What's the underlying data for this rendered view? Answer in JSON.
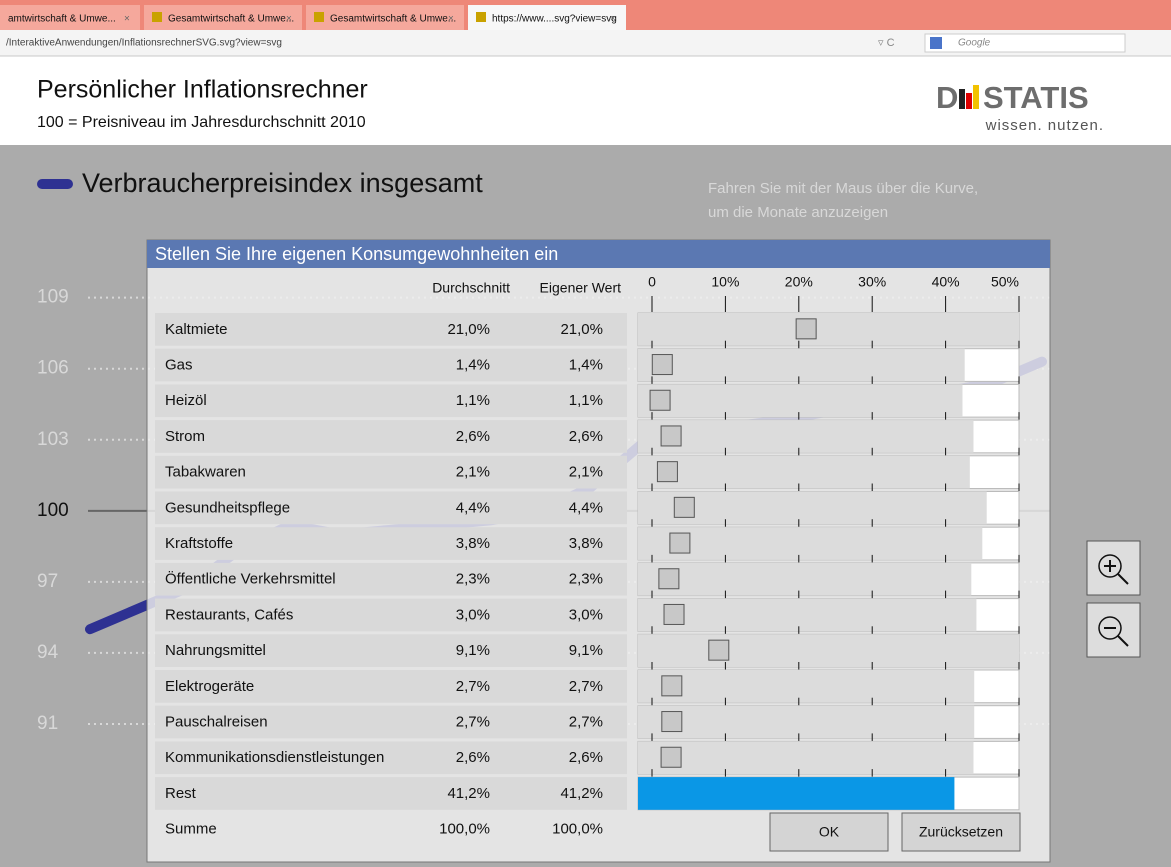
{
  "browser": {
    "tabs": [
      "amtwirtschaft & Umwe...",
      "Gesamtwirtschaft & Umwe...",
      "Gesamtwirtschaft & Umwe...",
      "https://www....svg?view=svg"
    ],
    "address": "/InteraktiveAnwendungen/InflationsrechnerSVG.svg?view=svg",
    "search": "Google"
  },
  "header": {
    "title": "Persönlicher Inflationsrechner",
    "subtitle": "100 = Preisniveau im Jahresdurchschnitt 2010",
    "logo_left": "D",
    "logo_right": "STATIS",
    "logo_tagline": "wissen. nutzen."
  },
  "index_chart": {
    "legend": "Verbraucherpreisindex insgesamt",
    "hint": [
      "Fahren Sie mit der Maus über die Kurve,",
      "um die Monate anzuzeigen"
    ],
    "ylim": [
      88,
      110
    ],
    "yticks": [
      109,
      106,
      103,
      100,
      97,
      94,
      91
    ],
    "values": [
      95.0,
      95.9,
      96.8,
      98.4,
      99.4,
      99.0,
      99.2,
      99.4,
      99.6,
      100.0,
      101.0,
      102.8,
      103.4,
      103.6,
      103.9,
      104.3,
      104.7,
      105.0,
      105.4,
      106.3
    ]
  },
  "calculator": {
    "title": "Stellen Sie Ihre eigenen Konsumgewohnheiten ein",
    "columns": [
      "Durchschnitt",
      "Eigener Wert"
    ],
    "scale": {
      "lim": [
        0,
        50
      ],
      "ticks": [
        0,
        {
          "value": 10,
          "label": "10%"
        },
        {
          "value": 20,
          "label": "20%"
        },
        {
          "value": 30,
          "label": "30%"
        },
        {
          "value": 40,
          "label": "40%"
        },
        {
          "value": 50,
          "label": "50%"
        }
      ]
    },
    "rows": [
      {
        "name": "Kaltmiete",
        "average": "21,0%",
        "own": "21,0%",
        "weight": 21.0
      },
      {
        "name": "Gas",
        "average": "1,4%",
        "own": "1,4%",
        "weight": 1.4
      },
      {
        "name": "Heizöl",
        "average": "1,1%",
        "own": "1,1%",
        "weight": 1.1
      },
      {
        "name": "Strom",
        "average": "2,6%",
        "own": "2,6%",
        "weight": 2.6
      },
      {
        "name": "Tabakwaren",
        "average": "2,1%",
        "own": "2,1%",
        "weight": 2.1
      },
      {
        "name": "Gesundheitspflege",
        "average": "4,4%",
        "own": "4,4%",
        "weight": 4.4
      },
      {
        "name": "Kraftstoffe",
        "average": "3,8%",
        "own": "3,8%",
        "weight": 3.8
      },
      {
        "name": "Öffentliche Verkehrsmittel",
        "average": "2,3%",
        "own": "2,3%",
        "weight": 2.3
      },
      {
        "name": "Restaurants, Cafés",
        "average": "3,0%",
        "own": "3,0%",
        "weight": 3.0
      },
      {
        "name": "Nahrungsmittel",
        "average": "9,1%",
        "own": "9,1%",
        "weight": 9.1
      },
      {
        "name": "Elektrogeräte",
        "average": "2,7%",
        "own": "2,7%",
        "weight": 2.7
      },
      {
        "name": "Pauschalreisen",
        "average": "2,7%",
        "own": "2,7%",
        "weight": 2.7
      },
      {
        "name": "Kommunikationsdienstleistungen",
        "average": "2,6%",
        "own": "2,6%",
        "weight": 2.6
      },
      {
        "name": "Rest",
        "average": "41,2%",
        "own": "41,2%",
        "weight": 41.2
      }
    ],
    "total": {
      "name": "Summe",
      "average": "100,0%",
      "own": "100,0%"
    },
    "buttons": [
      "OK",
      "Zurücksetzen"
    ]
  }
}
